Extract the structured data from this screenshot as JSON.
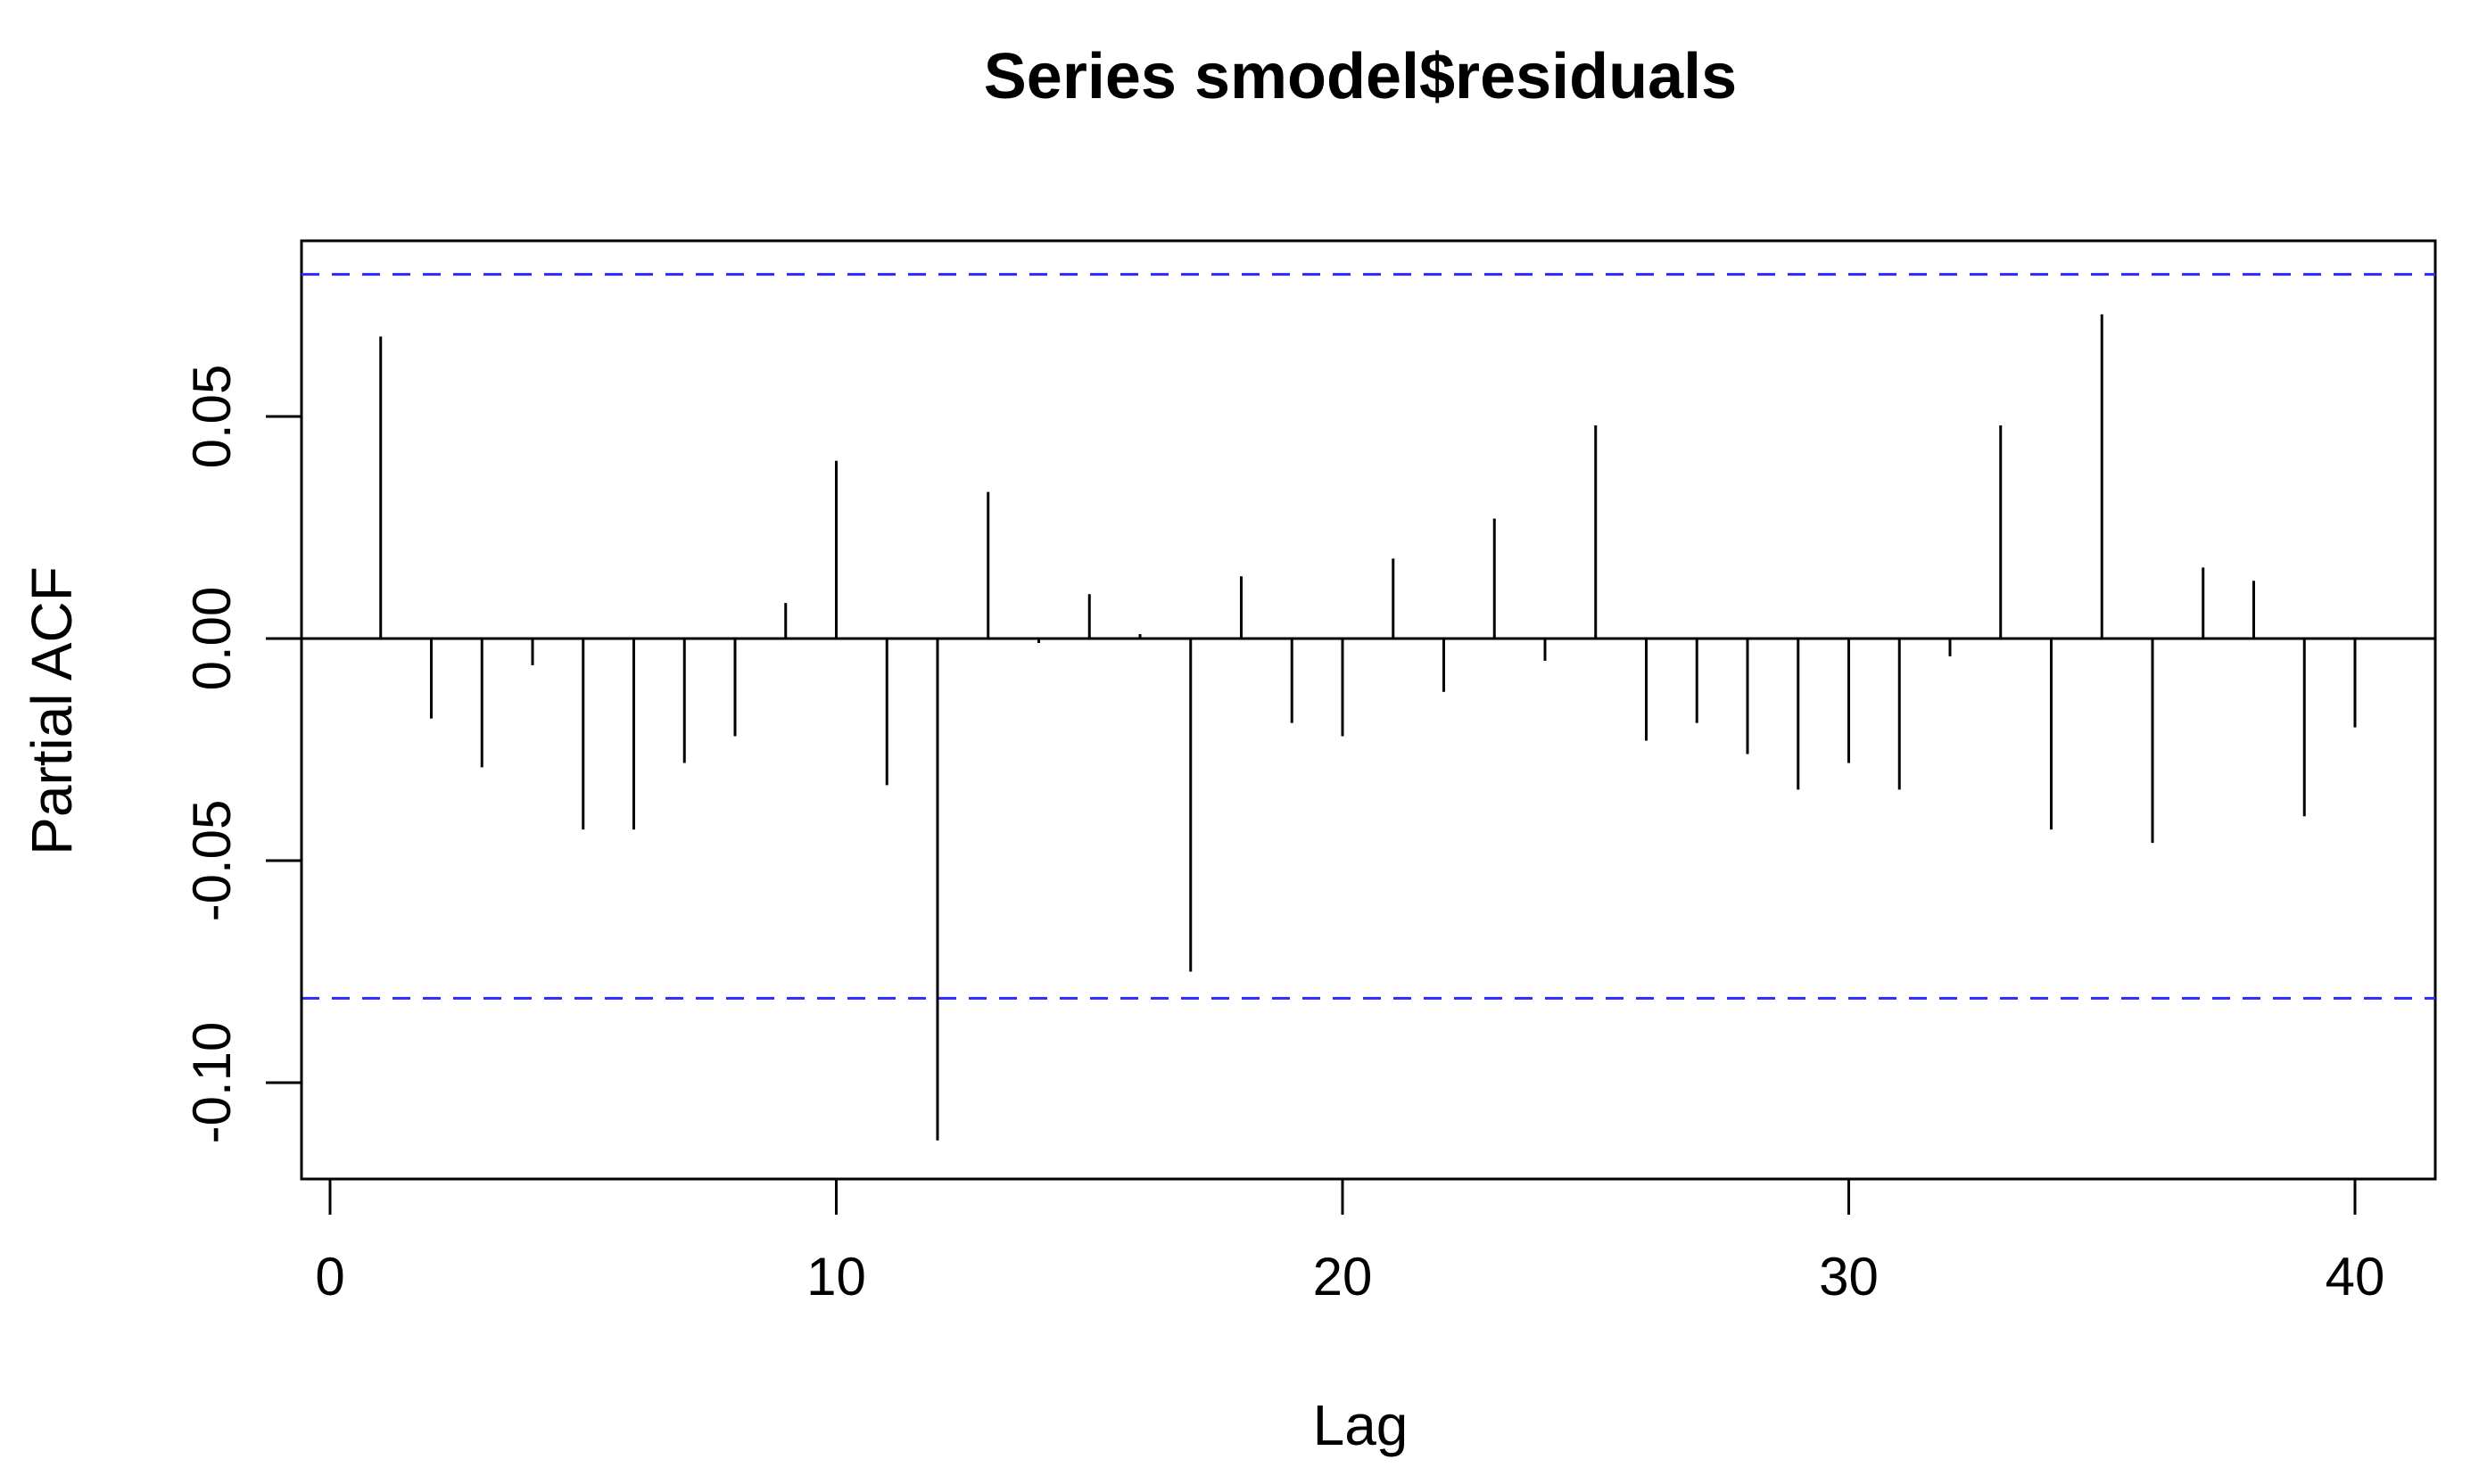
{
  "chart_data": {
    "type": "bar",
    "title": "Series  smodel$residuals",
    "xlabel": "Lag",
    "ylabel": "Partial ACF",
    "xlim": [
      -0.5,
      41.5
    ],
    "ylim": [
      -0.12,
      0.09
    ],
    "x_ticks": [
      0,
      10,
      20,
      30,
      40
    ],
    "y_ticks": [
      -0.1,
      -0.05,
      0.0,
      0.05
    ],
    "x_tick_labels": [
      "0",
      "10",
      "20",
      "30",
      "40"
    ],
    "y_tick_labels": [
      "-0.10",
      "-0.05",
      "0.00",
      "0.05"
    ],
    "confidence_limits": [
      0.082,
      -0.081
    ],
    "confidence_color": "#2b2bff",
    "bar_color": "#000000",
    "lags": [
      1,
      2,
      3,
      4,
      5,
      6,
      7,
      8,
      9,
      10,
      11,
      12,
      13,
      14,
      15,
      16,
      17,
      18,
      19,
      20,
      21,
      22,
      23,
      24,
      25,
      26,
      27,
      28,
      29,
      30,
      31,
      32,
      33,
      34,
      35,
      36,
      37,
      38,
      39,
      40
    ],
    "values": [
      0.068,
      -0.018,
      -0.029,
      -0.006,
      -0.043,
      -0.043,
      -0.028,
      -0.022,
      0.008,
      0.04,
      -0.033,
      -0.113,
      0.033,
      -0.001,
      0.01,
      0.001,
      -0.075,
      0.014,
      -0.019,
      -0.022,
      0.018,
      -0.012,
      0.027,
      -0.005,
      0.048,
      -0.023,
      -0.019,
      -0.026,
      -0.034,
      -0.028,
      -0.034,
      -0.004,
      0.048,
      -0.043,
      0.073,
      -0.046,
      0.016,
      0.013,
      -0.04,
      -0.02
    ],
    "grid": false,
    "legend": "none"
  }
}
